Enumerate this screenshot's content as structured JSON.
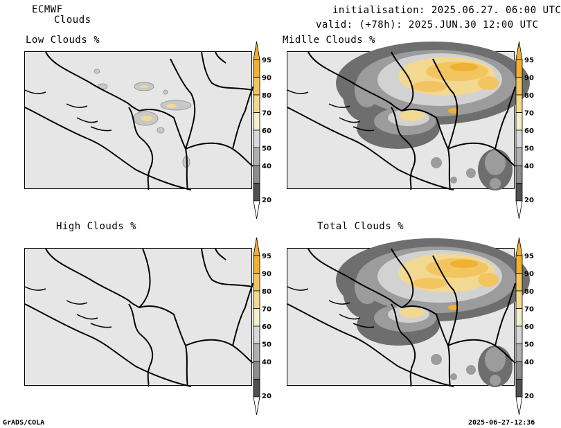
{
  "header": {
    "model": "ECMWF",
    "product": "Clouds",
    "init_text": "initialisation: 2025.06.27. 06:00 UTC",
    "valid_text": "valid: (+78h): 2025.JUN.30 12:00 UTC"
  },
  "footer": {
    "software": "GrADS/COLA",
    "timestamp": "2025-06-27-12:36"
  },
  "panels": [
    {
      "title": "Low Clouds %"
    },
    {
      "title": "Midlle Clouds %"
    },
    {
      "title": "High Clouds %"
    },
    {
      "title": "Total Clouds %"
    }
  ],
  "colorbar": {
    "ticks": [
      "95",
      "90",
      "80",
      "70",
      "60",
      "50",
      "40",
      "20"
    ],
    "colors": [
      "#f0b030",
      "#f2c560",
      "#f3d891",
      "#f2f0c8",
      "#d8d8d8",
      "#b0b0b0",
      "#8c8c8c",
      "#505050"
    ]
  }
}
